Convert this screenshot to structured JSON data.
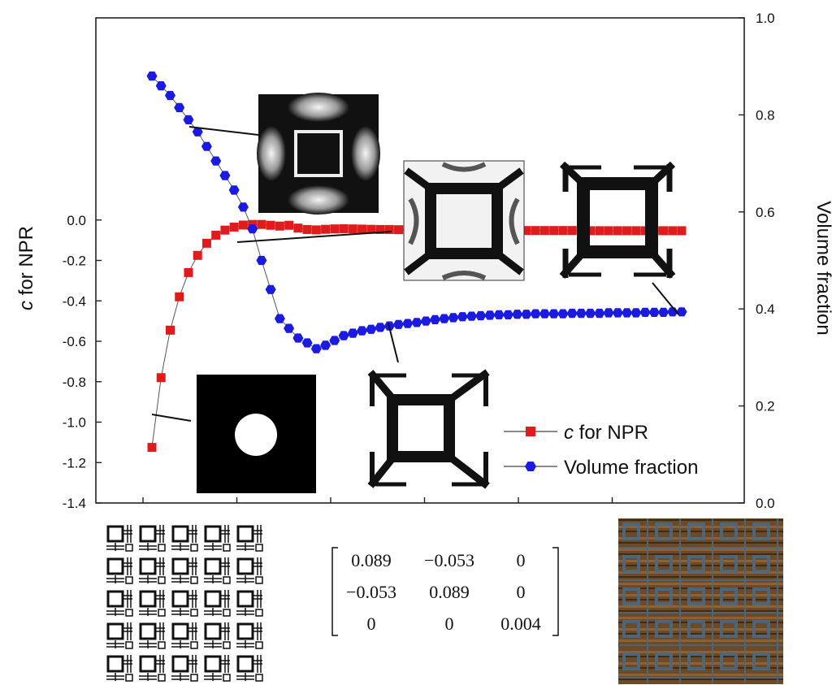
{
  "chart_data": {
    "type": "line",
    "xlabel": "",
    "left_ylabel": {
      "italic": "c",
      "rest": " for NPR"
    },
    "right_ylabel": "Volume fraction",
    "x_range": [
      0,
      64
    ],
    "y_left": {
      "range": [
        -1.4,
        1.0
      ],
      "ticks": [
        "0.0",
        "-0.2",
        "-0.4",
        "-0.6",
        "-0.8",
        "-1.0",
        "-1.2",
        "-1.4"
      ],
      "tick_values": [
        0.0,
        -0.2,
        -0.4,
        -0.6,
        -0.8,
        -1.0,
        -1.2,
        -1.4
      ]
    },
    "y_right": {
      "range": [
        0.0,
        1.0
      ],
      "ticks": [
        "1.0",
        "0.8",
        "0.6",
        "0.4",
        "0.2",
        "0.0"
      ],
      "tick_values": [
        1.0,
        0.8,
        0.6,
        0.4,
        0.2,
        0.0
      ]
    },
    "x_tick_values": [
      10,
      20,
      30,
      40,
      50,
      60
    ],
    "grid": false,
    "legend_position": "bottom-right",
    "series": [
      {
        "name": "c for NPR",
        "legend_italic": "c",
        "legend_rest": " for NPR",
        "axis": "left",
        "color": "#e01b1b",
        "marker": "square",
        "x": [
          1,
          2,
          3,
          4,
          5,
          6,
          7,
          8,
          9,
          10,
          11,
          12,
          13,
          14,
          15,
          16,
          17,
          18,
          19,
          20,
          21,
          22,
          23,
          24,
          25,
          26,
          27,
          28,
          29,
          30,
          31,
          32,
          33,
          34,
          35,
          36,
          37,
          38,
          39,
          40,
          41,
          42,
          43,
          44,
          45,
          46,
          47,
          48,
          49,
          50,
          51,
          52,
          53,
          54,
          55,
          56,
          57,
          58,
          59
        ],
        "values": [
          -1.125,
          -0.78,
          -0.545,
          -0.38,
          -0.26,
          -0.175,
          -0.115,
          -0.075,
          -0.05,
          -0.035,
          -0.025,
          -0.022,
          -0.022,
          -0.026,
          -0.03,
          -0.026,
          -0.04,
          -0.047,
          -0.049,
          -0.046,
          -0.044,
          -0.043,
          -0.044,
          -0.045,
          -0.046,
          -0.047,
          -0.047,
          -0.048,
          -0.048,
          -0.049,
          -0.049,
          -0.05,
          -0.05,
          -0.05,
          -0.05,
          -0.05,
          -0.051,
          -0.051,
          -0.051,
          -0.051,
          -0.051,
          -0.052,
          -0.052,
          -0.052,
          -0.052,
          -0.052,
          -0.052,
          -0.052,
          -0.053,
          -0.053,
          -0.053,
          -0.053,
          -0.053,
          -0.053,
          -0.053,
          -0.053,
          -0.053,
          -0.053,
          -0.053
        ]
      },
      {
        "name": "Volume fraction",
        "axis": "right",
        "color": "#1a1ae0",
        "marker": "hexagon",
        "x": [
          1,
          2,
          3,
          4,
          5,
          6,
          7,
          8,
          9,
          10,
          11,
          12,
          13,
          14,
          15,
          16,
          17,
          18,
          19,
          20,
          21,
          22,
          23,
          24,
          25,
          26,
          27,
          28,
          29,
          30,
          31,
          32,
          33,
          34,
          35,
          36,
          37,
          38,
          39,
          40,
          41,
          42,
          43,
          44,
          45,
          46,
          47,
          48,
          49,
          50,
          51,
          52,
          53,
          54,
          55,
          56,
          57,
          58,
          59
        ],
        "values": [
          0.88,
          0.86,
          0.84,
          0.815,
          0.79,
          0.765,
          0.735,
          0.705,
          0.675,
          0.645,
          0.61,
          0.565,
          0.5,
          0.44,
          0.38,
          0.36,
          0.34,
          0.33,
          0.318,
          0.325,
          0.335,
          0.345,
          0.35,
          0.355,
          0.358,
          0.362,
          0.365,
          0.368,
          0.37,
          0.372,
          0.375,
          0.378,
          0.38,
          0.382,
          0.384,
          0.385,
          0.386,
          0.387,
          0.388,
          0.388,
          0.389,
          0.389,
          0.39,
          0.39,
          0.39,
          0.39,
          0.391,
          0.391,
          0.391,
          0.391,
          0.392,
          0.392,
          0.392,
          0.392,
          0.393,
          0.393,
          0.393,
          0.394,
          0.394
        ]
      }
    ],
    "stiffness_matrix": [
      [
        "0.089",
        "−0.053",
        "0"
      ],
      [
        "−0.053",
        "0.089",
        "0"
      ],
      [
        "0",
        "0",
        "0.004"
      ]
    ],
    "insets": [
      "density-field-early",
      "density-field-mid",
      "binary-design-mid",
      "binary-design-converged",
      "initial-circle-design",
      "periodic-lattice-drawing",
      "printed-lattice-photo"
    ]
  }
}
